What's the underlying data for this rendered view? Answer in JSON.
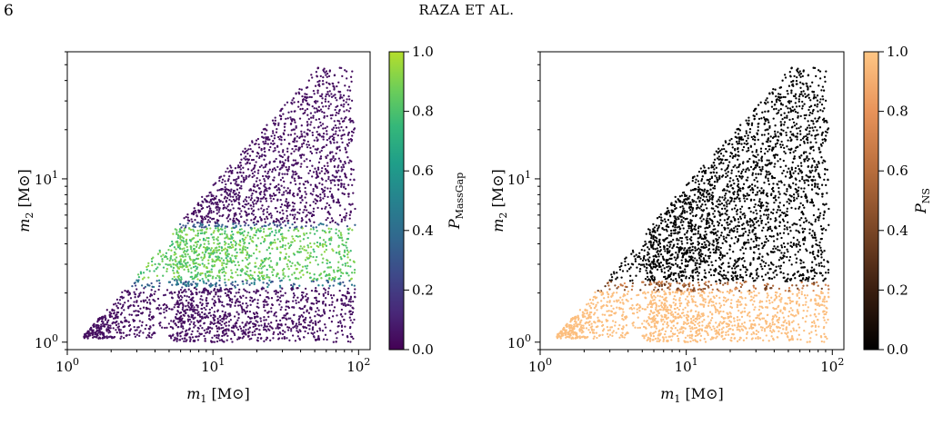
{
  "page": {
    "page_number": "6",
    "running_head": "RAZA ET AL."
  },
  "colors": {
    "massgap_cmap": [
      "#440154",
      "#482878",
      "#3e4989",
      "#31688e",
      "#26828e",
      "#1f9e89",
      "#35b779",
      "#6ece58",
      "#b5de2b"
    ],
    "ns_cmap": [
      "#000000",
      "#3a1e10",
      "#7a4626",
      "#b76d3c",
      "#e8935a",
      "#ffc684"
    ]
  },
  "chart_data": [
    {
      "type": "scatter",
      "title": "",
      "xlabel": "m1 [M⊙]",
      "ylabel": "m2 [M⊙]",
      "xscale": "log",
      "yscale": "log",
      "xlim": [
        1,
        120
      ],
      "ylim": [
        0.9,
        60
      ],
      "xticks": [
        {
          "value": 1,
          "base": "10",
          "exp": "0"
        },
        {
          "value": 10,
          "base": "10",
          "exp": "1"
        },
        {
          "value": 100,
          "base": "10",
          "exp": "2"
        }
      ],
      "yticks": [
        {
          "value": 1,
          "base": "10",
          "exp": "0"
        },
        {
          "value": 10,
          "base": "10",
          "exp": "1"
        }
      ],
      "colorbar": {
        "label": "P_MassGap",
        "label_main": "P",
        "label_sub": "MassGap",
        "range": [
          0.0,
          1.0
        ],
        "ticks": [
          "0.0",
          "0.2",
          "0.4",
          "0.6",
          "0.8",
          "1.0"
        ]
      },
      "color_mapping": "P_MassGap ≈ 0 for m2 > 5 M⊙ and m2 < 2.2 M⊙; ≈ 1 for 2.5 < m2 < 5 M⊙",
      "population": {
        "m1_range": [
          1.2,
          95
        ],
        "m2_range": [
          1.0,
          48
        ],
        "constraint": "m2 ≤ m1"
      }
    },
    {
      "type": "scatter",
      "title": "",
      "xlabel": "m1 [M⊙]",
      "ylabel": "m2 [M⊙]",
      "xscale": "log",
      "yscale": "log",
      "xlim": [
        1,
        120
      ],
      "ylim": [
        0.9,
        60
      ],
      "xticks": [
        {
          "value": 1,
          "base": "10",
          "exp": "0"
        },
        {
          "value": 10,
          "base": "10",
          "exp": "1"
        },
        {
          "value": 100,
          "base": "10",
          "exp": "2"
        }
      ],
      "yticks": [
        {
          "value": 1,
          "base": "10",
          "exp": "0"
        },
        {
          "value": 10,
          "base": "10",
          "exp": "1"
        }
      ],
      "colorbar": {
        "label": "P_NS",
        "label_main": "P",
        "label_sub": "NS",
        "range": [
          0.0,
          1.0
        ],
        "ticks": [
          "0.0",
          "0.2",
          "0.4",
          "0.6",
          "0.8",
          "1.0"
        ]
      },
      "color_mapping": "P_NS ≈ 1 for m2 < 2 M⊙; ≈ 0 for m2 > 2.5 M⊙",
      "population": {
        "m1_range": [
          1.2,
          95
        ],
        "m2_range": [
          1.0,
          48
        ],
        "constraint": "m2 ≤ m1"
      }
    }
  ]
}
